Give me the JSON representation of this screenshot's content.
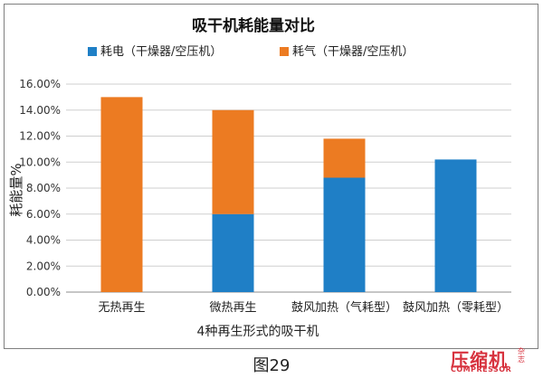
{
  "chart_data": {
    "type": "bar",
    "stacked": true,
    "title": "吸干机耗能量对比",
    "xlabel": "4种再生形式的吸干机",
    "ylabel": "耗能量%",
    "categories": [
      "无热再生",
      "微热再生",
      "鼓风加热（气耗型）",
      "鼓风加热（零耗型）"
    ],
    "series": [
      {
        "name": "耗电（干燥器/空压机）",
        "color": "#1f7fc6",
        "values": [
          0,
          6.0,
          8.8,
          10.2
        ]
      },
      {
        "name": "耗气（干燥器/空压机）",
        "color": "#ec7b22",
        "values": [
          15.0,
          8.0,
          3.0,
          0
        ]
      }
    ],
    "ylim": [
      0,
      16
    ],
    "yticks": [
      "0.00%",
      "2.00%",
      "4.00%",
      "6.00%",
      "8.00%",
      "10.00%",
      "12.00%",
      "14.00%",
      "16.00%"
    ],
    "grid": true,
    "legend_position": "top"
  },
  "caption": "图29",
  "watermark": {
    "main": "压缩机",
    "side": "杂志",
    "sub": "COMPRESSOR"
  }
}
